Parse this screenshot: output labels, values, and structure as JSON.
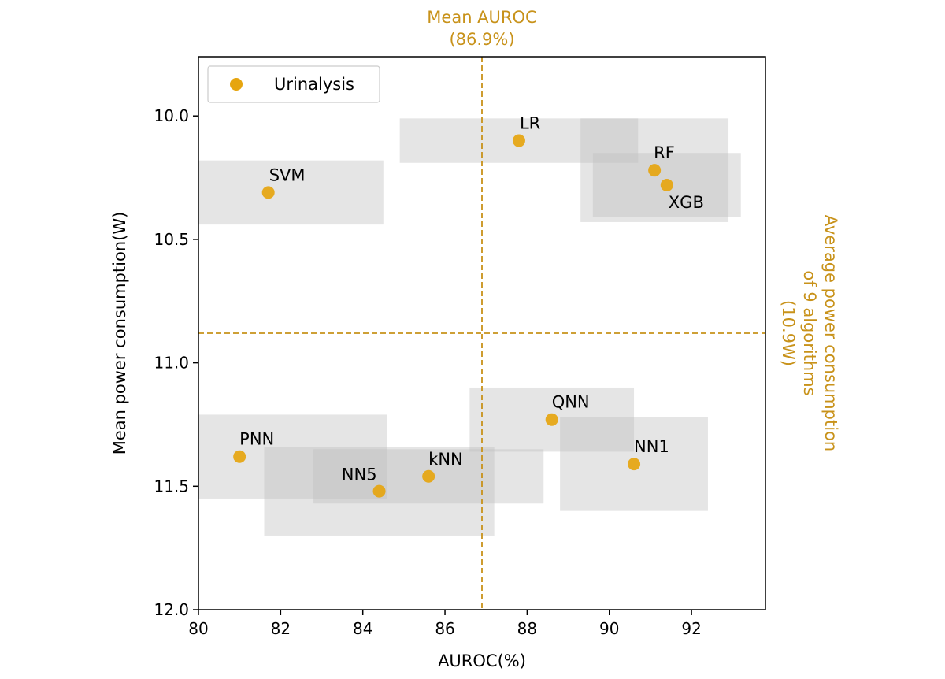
{
  "chart_data": {
    "type": "scatter",
    "xlabel": "AUROC(%)",
    "ylabel": "Mean power consumption(W)",
    "xlim": [
      80,
      93.8
    ],
    "ylim": [
      12.0,
      9.76
    ],
    "y_inverted": true,
    "x_ticks": [
      80,
      82,
      84,
      86,
      88,
      90,
      92
    ],
    "x_tick_labels": [
      "80",
      "82",
      "84",
      "86",
      "88",
      "90",
      "92"
    ],
    "y_ticks": [
      10.0,
      10.5,
      11.0,
      11.5,
      12.0
    ],
    "y_tick_labels": [
      "10.0",
      "10.5",
      "11.0",
      "11.5",
      "12.0"
    ],
    "legend": {
      "entries": [
        "Urinalysis"
      ],
      "position": "top-left"
    },
    "series": [
      {
        "name": "Urinalysis",
        "color": "#E6A50F",
        "points": [
          {
            "label": "SVM",
            "x": 81.7,
            "y": 10.31,
            "x_err": 2.8,
            "y_err": 0.13,
            "label_pos": "above"
          },
          {
            "label": "LR",
            "x": 87.8,
            "y": 10.1,
            "x_err": 2.9,
            "y_err": 0.09,
            "label_pos": "above"
          },
          {
            "label": "RF",
            "x": 91.1,
            "y": 10.22,
            "x_err": 1.8,
            "y_err": 0.21,
            "label_pos": "above"
          },
          {
            "label": "XGB",
            "x": 91.4,
            "y": 10.28,
            "x_err": 1.8,
            "y_err": 0.13,
            "label_pos": "below-right"
          },
          {
            "label": "QNN",
            "x": 88.6,
            "y": 11.23,
            "x_err": 2.0,
            "y_err": 0.13,
            "label_pos": "above-right"
          },
          {
            "label": "NN1",
            "x": 90.6,
            "y": 11.41,
            "x_err": 1.8,
            "y_err": 0.19,
            "label_pos": "above-right"
          },
          {
            "label": "PNN",
            "x": 81.0,
            "y": 11.38,
            "x_err": 3.6,
            "y_err": 0.17,
            "label_pos": "above-right"
          },
          {
            "label": "kNN",
            "x": 85.6,
            "y": 11.46,
            "x_err": 2.8,
            "y_err": 0.11,
            "label_pos": "above-right"
          },
          {
            "label": "NN5",
            "x": 84.4,
            "y": 11.52,
            "x_err": 2.8,
            "y_err": 0.18,
            "label_pos": "left"
          }
        ]
      }
    ],
    "reference_lines": [
      {
        "orientation": "vertical",
        "value": 86.9,
        "label_lines": [
          "Mean AUROC",
          "(86.9%)"
        ],
        "color": "#C8921A"
      },
      {
        "orientation": "horizontal",
        "value": 10.88,
        "label_lines": [
          "Average power consumption",
          "of 9 algorithms",
          "(10.9W)"
        ],
        "color": "#C8921A"
      }
    ],
    "error_box_color": "#BDBDBD"
  }
}
